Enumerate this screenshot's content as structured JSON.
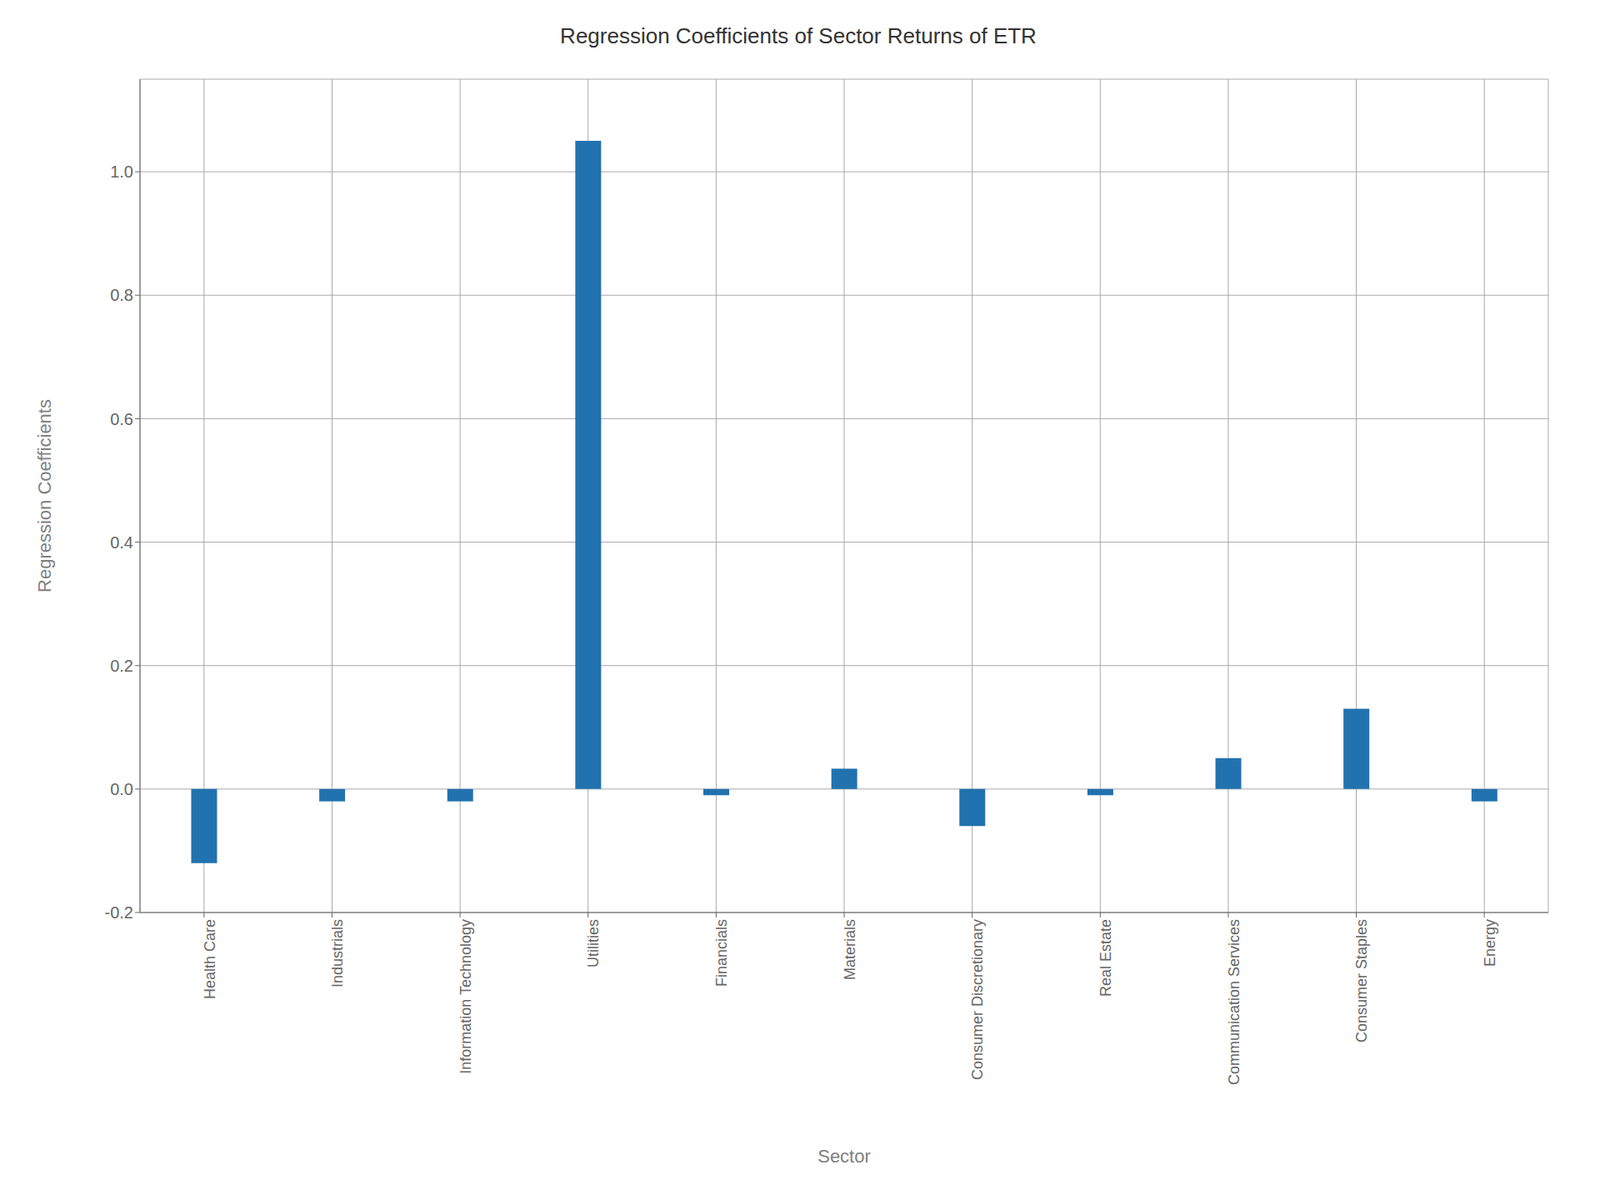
{
  "chart_data": {
    "type": "bar",
    "title": "Regression Coefficients of Sector Returns of ETR",
    "xlabel": "Sector",
    "ylabel": "Regression Coefficients",
    "categories": [
      "Health Care",
      "Industrials",
      "Information Technology",
      "Utilities",
      "Financials",
      "Materials",
      "Consumer Discretionary",
      "Real Estate",
      "Communication Services",
      "Consumer Staples",
      "Energy"
    ],
    "values": [
      -0.12,
      -0.02,
      -0.02,
      1.05,
      -0.01,
      0.033,
      -0.06,
      -0.01,
      0.05,
      0.13,
      -0.02
    ],
    "color": "#2272B0",
    "ylim": [
      -0.2,
      1.15
    ],
    "yticks": [
      -0.2,
      {
        "value": 0,
        "label": "0.0"
      },
      0.2,
      0.4,
      0.6,
      0.8,
      {
        "value": 1,
        "label": "1.0"
      }
    ],
    "grid": true
  }
}
